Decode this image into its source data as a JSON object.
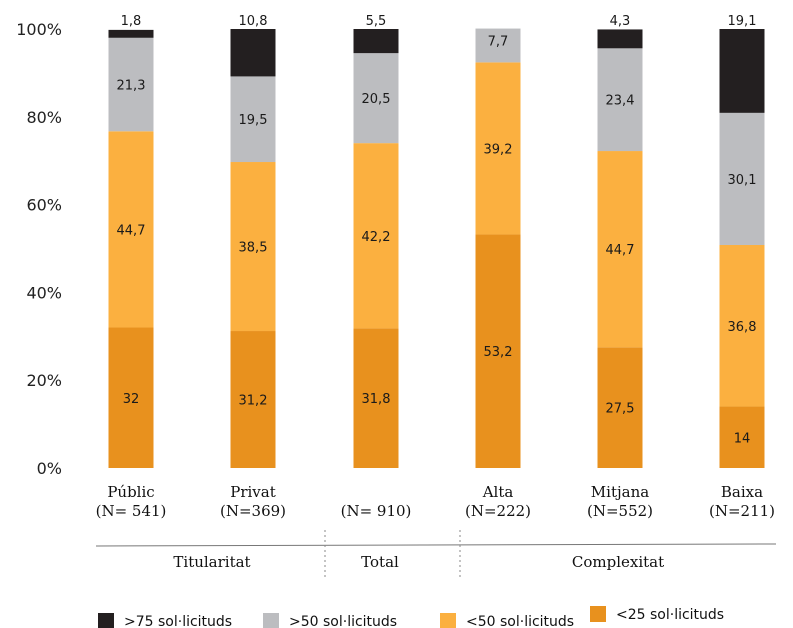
{
  "chart_data": {
    "type": "bar",
    "stacked": true,
    "ylim": [
      0,
      100
    ],
    "yticks": [
      "0%",
      "20%",
      "40%",
      "60%",
      "80%",
      "100%"
    ],
    "grid": false,
    "legend_position": "bottom",
    "categories": [
      {
        "name": "Públic",
        "n": "(N= 541)"
      },
      {
        "name": "Privat",
        "n": "(N=369)"
      },
      {
        "name": "",
        "n": "(N= 910)"
      },
      {
        "name": "Alta",
        "n": "(N=222)"
      },
      {
        "name": "Mitjana",
        "n": "(N=552)"
      },
      {
        "name": "Baixa",
        "n": "(N=211)"
      }
    ],
    "groups": [
      {
        "label": "Titularitat",
        "categories": [
          0,
          1
        ]
      },
      {
        "label": "Total",
        "categories": [
          2
        ]
      },
      {
        "label": "Complexitat",
        "categories": [
          3,
          4,
          5
        ]
      }
    ],
    "series": [
      {
        "name": "<25 sol·licituds",
        "color": "#e8911e",
        "values": [
          32,
          31.2,
          31.8,
          53.2,
          27.5,
          14
        ],
        "labels": [
          "32",
          "31,2",
          "31,8",
          "53,2",
          "27,5",
          "14"
        ]
      },
      {
        "name": "<50 sol·licituds",
        "color": "#fbb040",
        "values": [
          44.7,
          38.5,
          42.2,
          39.2,
          44.7,
          36.8
        ],
        "labels": [
          "44,7",
          "38,5",
          "42,2",
          "39,2",
          "44,7",
          "36,8"
        ]
      },
      {
        "name": ">50 sol·licituds",
        "color": "#bcbdc0",
        "values": [
          21.3,
          19.5,
          20.5,
          7.7,
          23.4,
          30.1
        ],
        "labels": [
          "21,3",
          "19,5",
          "20,5",
          "7,7",
          "23,4",
          "30,1"
        ]
      },
      {
        "name": ">75 sol·licituds",
        "color": "#231f20",
        "values": [
          1.8,
          10.8,
          5.5,
          0,
          4.3,
          19.1
        ],
        "labels": [
          "1,8",
          "10,8",
          "5,5",
          "",
          "4,3",
          "19,1"
        ]
      }
    ],
    "legend_order": [
      3,
      2,
      1,
      0
    ]
  }
}
